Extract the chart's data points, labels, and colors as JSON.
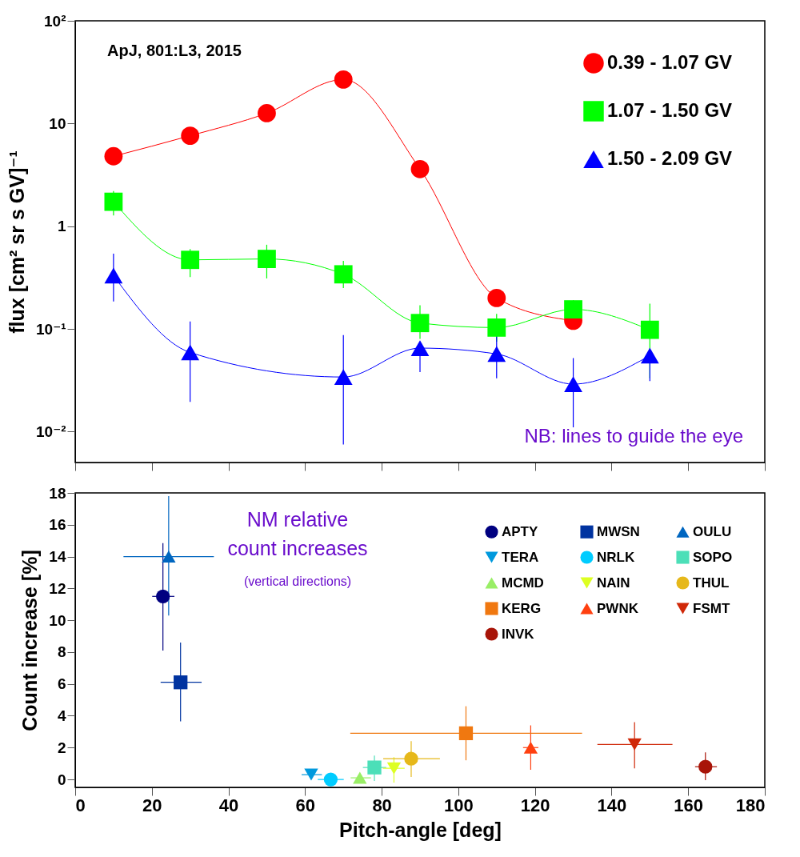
{
  "chart_data": [
    {
      "type": "line",
      "ylabel": "flux [cm² sr s GV]⁻¹",
      "log": true,
      "legend": "top right",
      "tick_labels": "y",
      "xlim": [
        0,
        180
      ],
      "xticks": [
        0,
        20,
        40,
        60,
        80,
        100,
        120,
        140,
        160,
        180
      ],
      "ylim": [
        0.005,
        100
      ],
      "yticks": [
        {
          "value": 0.01,
          "label": "10⁻²"
        },
        {
          "value": 0.1,
          "label": "10⁻¹"
        },
        1,
        10,
        {
          "value": 100,
          "label": "10²"
        }
      ],
      "x": [
        10,
        30,
        50,
        70,
        90,
        110,
        130,
        150
      ],
      "annotations": [
        "ApJ, 801:L3, 2015",
        "NB: lines to guide the eye"
      ],
      "series": [
        {
          "name": "0.39 - 1.07 GV",
          "color": "#ff0000",
          "marker": "circle",
          "values": [
            4.8,
            7.6,
            12.6,
            26.8,
            3.6,
            0.2,
            0.12,
            null
          ]
        },
        {
          "name": "1.07 - 1.50 GV",
          "color": "#00ff00",
          "marker": "square",
          "values": [
            1.73,
            0.47,
            0.48,
            0.34,
            0.114,
            0.103,
            0.155,
            0.098
          ],
          "errors": [
            [
              1.27,
              2.2
            ],
            [
              0.32,
              0.6
            ],
            [
              0.31,
              0.66
            ],
            [
              0.25,
              0.46
            ],
            [
              0.08,
              0.17
            ],
            [
              0.075,
              0.14
            ],
            [
              0.155,
              0.19
            ],
            [
              0.033,
              0.176
            ]
          ]
        },
        {
          "name": "1.50 - 2.09 GV",
          "color": "#0000ff",
          "marker": "triangle",
          "values": [
            0.33,
            0.059,
            null,
            0.034,
            0.065,
            0.057,
            0.029,
            0.055
          ],
          "errors": [
            [
              0.185,
              0.54
            ],
            [
              0.0195,
              0.118
            ],
            null,
            [
              0.0075,
              0.087
            ],
            [
              0.038,
              0.065
            ],
            [
              0.033,
              0.087
            ],
            [
              0.011,
              0.052
            ],
            [
              0.031,
              0.055
            ]
          ]
        }
      ]
    },
    {
      "type": "scatter",
      "xlabel": "Pitch-angle [deg]",
      "ylabel": "Count increase [%]",
      "legend": "top right",
      "xlim": [
        0,
        180
      ],
      "xticks": [
        0,
        20,
        40,
        60,
        80,
        100,
        120,
        140,
        160,
        180
      ],
      "ylim": [
        -0.5,
        18
      ],
      "yticks": [
        0,
        2,
        4,
        6,
        8,
        10,
        12,
        14,
        16,
        18
      ],
      "annotations": [
        "NM relative count increases",
        "(vertical directions)"
      ],
      "series": [
        {
          "name": "APTY",
          "color": "#000080",
          "marker": "circle",
          "x": [
            22.9
          ],
          "values": [
            11.5
          ],
          "errors": [
            [
              8.1,
              14.85
            ]
          ],
          "xerrors": [
            [
              20.1,
              25.9
            ]
          ]
        },
        {
          "name": "MWSN",
          "color": "#0033a0",
          "marker": "square",
          "x": [
            27.5
          ],
          "values": [
            6.1
          ],
          "errors": [
            [
              3.65,
              8.6
            ]
          ],
          "xerrors": [
            [
              22.3,
              33.0
            ]
          ]
        },
        {
          "name": "OULU",
          "color": "#0066c0",
          "marker": "triangle",
          "x": [
            24.4
          ],
          "values": [
            14.0
          ],
          "errors": [
            [
              10.3,
              17.8
            ]
          ],
          "xerrors": [
            [
              12.6,
              36.2
            ]
          ]
        },
        {
          "name": "TERA",
          "color": "#0099dd",
          "marker": "triangle-down",
          "x": [
            61.6
          ],
          "values": [
            0.3
          ],
          "xerrors": [
            [
              59.1,
              64.4
            ]
          ]
        },
        {
          "name": "NRLK",
          "color": "#00ccff",
          "marker": "circle",
          "x": [
            66.7
          ],
          "values": [
            0.0
          ],
          "xerrors": [
            [
              63.3,
              70.1
            ]
          ]
        },
        {
          "name": "SOPO",
          "color": "#4cdfb8",
          "marker": "square",
          "x": [
            78.1
          ],
          "values": [
            0.75
          ],
          "errors": [
            [
              -0.1,
              1.5
            ]
          ],
          "xerrors": [
            [
              75.1,
              81.2
            ]
          ]
        },
        {
          "name": "MCMD",
          "color": "#99ee66",
          "marker": "triangle",
          "x": [
            74.3
          ],
          "values": [
            0.1
          ],
          "xerrors": [
            [
              71.9,
              77.2
            ]
          ]
        },
        {
          "name": "NAIN",
          "color": "#ddff22",
          "marker": "triangle-down",
          "x": [
            83.2
          ],
          "values": [
            0.7
          ],
          "errors": [
            [
              -0.2,
              1.4
            ]
          ],
          "xerrors": [
            [
              80.3,
              86.0
            ]
          ]
        },
        {
          "name": "THUL",
          "color": "#e6b81a",
          "marker": "circle",
          "x": [
            87.7
          ],
          "values": [
            1.3
          ],
          "errors": [
            [
              0.15,
              2.4
            ]
          ],
          "xerrors": [
            [
              80.4,
              95.2
            ]
          ]
        },
        {
          "name": "KERG",
          "color": "#f07810",
          "marker": "square",
          "x": [
            102.0
          ],
          "values": [
            2.9
          ],
          "errors": [
            [
              1.2,
              4.6
            ]
          ],
          "xerrors": [
            [
              71.8,
              132.3
            ]
          ]
        },
        {
          "name": "PWNK",
          "color": "#ff4010",
          "marker": "triangle",
          "x": [
            118.9
          ],
          "values": [
            2.0
          ],
          "errors": [
            [
              0.6,
              3.4
            ]
          ],
          "xerrors": [
            [
              116.9,
              120.9
            ]
          ]
        },
        {
          "name": "FSMT",
          "color": "#d02808",
          "marker": "triangle-down",
          "x": [
            146.0
          ],
          "values": [
            2.2
          ],
          "errors": [
            [
              0.7,
              3.6
            ]
          ],
          "xerrors": [
            [
              136.3,
              155.9
            ]
          ]
        },
        {
          "name": "INVK",
          "color": "#a81408",
          "marker": "circle",
          "x": [
            164.5
          ],
          "values": [
            0.8
          ],
          "errors": [
            [
              -0.05,
              1.7
            ]
          ],
          "xerrors": [
            [
              161.8,
              167.5
            ]
          ]
        }
      ]
    }
  ]
}
